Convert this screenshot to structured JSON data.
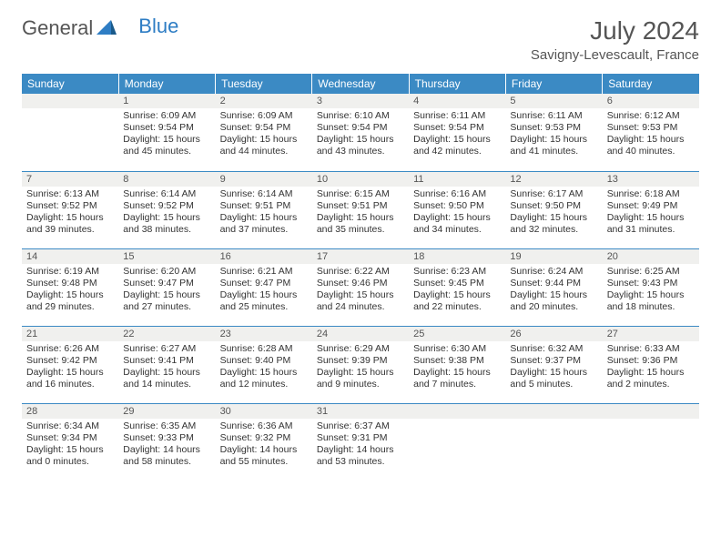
{
  "brand": {
    "part1": "General",
    "part2": "Blue"
  },
  "title": "July 2024",
  "location": "Savigny-Levescault, France",
  "colors": {
    "header_bg": "#3b8ac4",
    "header_text": "#ffffff",
    "daynum_bg": "#f0f0ee",
    "text": "#333333",
    "rule": "#3b8ac4",
    "logo_blue": "#2e7dc4",
    "logo_gray": "#555555"
  },
  "day_names": [
    "Sunday",
    "Monday",
    "Tuesday",
    "Wednesday",
    "Thursday",
    "Friday",
    "Saturday"
  ],
  "weeks": [
    [
      {
        "num": "",
        "sunrise": "",
        "sunset": "",
        "daylight": ""
      },
      {
        "num": "1",
        "sunrise": "Sunrise: 6:09 AM",
        "sunset": "Sunset: 9:54 PM",
        "daylight": "Daylight: 15 hours and 45 minutes."
      },
      {
        "num": "2",
        "sunrise": "Sunrise: 6:09 AM",
        "sunset": "Sunset: 9:54 PM",
        "daylight": "Daylight: 15 hours and 44 minutes."
      },
      {
        "num": "3",
        "sunrise": "Sunrise: 6:10 AM",
        "sunset": "Sunset: 9:54 PM",
        "daylight": "Daylight: 15 hours and 43 minutes."
      },
      {
        "num": "4",
        "sunrise": "Sunrise: 6:11 AM",
        "sunset": "Sunset: 9:54 PM",
        "daylight": "Daylight: 15 hours and 42 minutes."
      },
      {
        "num": "5",
        "sunrise": "Sunrise: 6:11 AM",
        "sunset": "Sunset: 9:53 PM",
        "daylight": "Daylight: 15 hours and 41 minutes."
      },
      {
        "num": "6",
        "sunrise": "Sunrise: 6:12 AM",
        "sunset": "Sunset: 9:53 PM",
        "daylight": "Daylight: 15 hours and 40 minutes."
      }
    ],
    [
      {
        "num": "7",
        "sunrise": "Sunrise: 6:13 AM",
        "sunset": "Sunset: 9:52 PM",
        "daylight": "Daylight: 15 hours and 39 minutes."
      },
      {
        "num": "8",
        "sunrise": "Sunrise: 6:14 AM",
        "sunset": "Sunset: 9:52 PM",
        "daylight": "Daylight: 15 hours and 38 minutes."
      },
      {
        "num": "9",
        "sunrise": "Sunrise: 6:14 AM",
        "sunset": "Sunset: 9:51 PM",
        "daylight": "Daylight: 15 hours and 37 minutes."
      },
      {
        "num": "10",
        "sunrise": "Sunrise: 6:15 AM",
        "sunset": "Sunset: 9:51 PM",
        "daylight": "Daylight: 15 hours and 35 minutes."
      },
      {
        "num": "11",
        "sunrise": "Sunrise: 6:16 AM",
        "sunset": "Sunset: 9:50 PM",
        "daylight": "Daylight: 15 hours and 34 minutes."
      },
      {
        "num": "12",
        "sunrise": "Sunrise: 6:17 AM",
        "sunset": "Sunset: 9:50 PM",
        "daylight": "Daylight: 15 hours and 32 minutes."
      },
      {
        "num": "13",
        "sunrise": "Sunrise: 6:18 AM",
        "sunset": "Sunset: 9:49 PM",
        "daylight": "Daylight: 15 hours and 31 minutes."
      }
    ],
    [
      {
        "num": "14",
        "sunrise": "Sunrise: 6:19 AM",
        "sunset": "Sunset: 9:48 PM",
        "daylight": "Daylight: 15 hours and 29 minutes."
      },
      {
        "num": "15",
        "sunrise": "Sunrise: 6:20 AM",
        "sunset": "Sunset: 9:47 PM",
        "daylight": "Daylight: 15 hours and 27 minutes."
      },
      {
        "num": "16",
        "sunrise": "Sunrise: 6:21 AM",
        "sunset": "Sunset: 9:47 PM",
        "daylight": "Daylight: 15 hours and 25 minutes."
      },
      {
        "num": "17",
        "sunrise": "Sunrise: 6:22 AM",
        "sunset": "Sunset: 9:46 PM",
        "daylight": "Daylight: 15 hours and 24 minutes."
      },
      {
        "num": "18",
        "sunrise": "Sunrise: 6:23 AM",
        "sunset": "Sunset: 9:45 PM",
        "daylight": "Daylight: 15 hours and 22 minutes."
      },
      {
        "num": "19",
        "sunrise": "Sunrise: 6:24 AM",
        "sunset": "Sunset: 9:44 PM",
        "daylight": "Daylight: 15 hours and 20 minutes."
      },
      {
        "num": "20",
        "sunrise": "Sunrise: 6:25 AM",
        "sunset": "Sunset: 9:43 PM",
        "daylight": "Daylight: 15 hours and 18 minutes."
      }
    ],
    [
      {
        "num": "21",
        "sunrise": "Sunrise: 6:26 AM",
        "sunset": "Sunset: 9:42 PM",
        "daylight": "Daylight: 15 hours and 16 minutes."
      },
      {
        "num": "22",
        "sunrise": "Sunrise: 6:27 AM",
        "sunset": "Sunset: 9:41 PM",
        "daylight": "Daylight: 15 hours and 14 minutes."
      },
      {
        "num": "23",
        "sunrise": "Sunrise: 6:28 AM",
        "sunset": "Sunset: 9:40 PM",
        "daylight": "Daylight: 15 hours and 12 minutes."
      },
      {
        "num": "24",
        "sunrise": "Sunrise: 6:29 AM",
        "sunset": "Sunset: 9:39 PM",
        "daylight": "Daylight: 15 hours and 9 minutes."
      },
      {
        "num": "25",
        "sunrise": "Sunrise: 6:30 AM",
        "sunset": "Sunset: 9:38 PM",
        "daylight": "Daylight: 15 hours and 7 minutes."
      },
      {
        "num": "26",
        "sunrise": "Sunrise: 6:32 AM",
        "sunset": "Sunset: 9:37 PM",
        "daylight": "Daylight: 15 hours and 5 minutes."
      },
      {
        "num": "27",
        "sunrise": "Sunrise: 6:33 AM",
        "sunset": "Sunset: 9:36 PM",
        "daylight": "Daylight: 15 hours and 2 minutes."
      }
    ],
    [
      {
        "num": "28",
        "sunrise": "Sunrise: 6:34 AM",
        "sunset": "Sunset: 9:34 PM",
        "daylight": "Daylight: 15 hours and 0 minutes."
      },
      {
        "num": "29",
        "sunrise": "Sunrise: 6:35 AM",
        "sunset": "Sunset: 9:33 PM",
        "daylight": "Daylight: 14 hours and 58 minutes."
      },
      {
        "num": "30",
        "sunrise": "Sunrise: 6:36 AM",
        "sunset": "Sunset: 9:32 PM",
        "daylight": "Daylight: 14 hours and 55 minutes."
      },
      {
        "num": "31",
        "sunrise": "Sunrise: 6:37 AM",
        "sunset": "Sunset: 9:31 PM",
        "daylight": "Daylight: 14 hours and 53 minutes."
      },
      {
        "num": "",
        "sunrise": "",
        "sunset": "",
        "daylight": ""
      },
      {
        "num": "",
        "sunrise": "",
        "sunset": "",
        "daylight": ""
      },
      {
        "num": "",
        "sunrise": "",
        "sunset": "",
        "daylight": ""
      }
    ]
  ]
}
